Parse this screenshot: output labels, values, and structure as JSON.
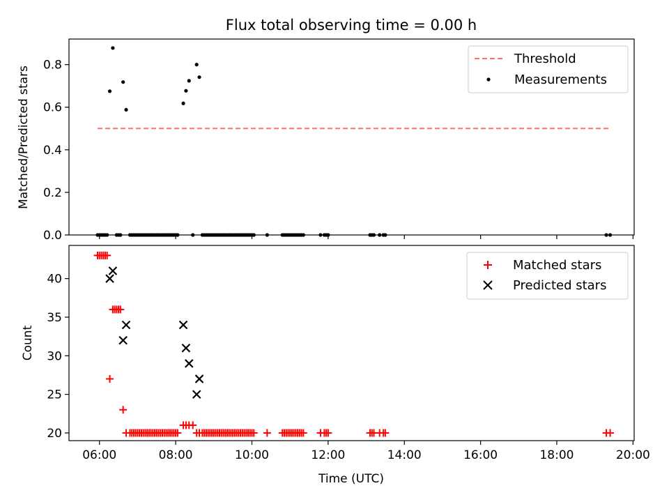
{
  "chart_data": [
    {
      "type": "scatter",
      "title": "Flux total observing time = 0.00 h",
      "xlabel": "",
      "ylabel": "Matched/Predicted stars",
      "xlim": [
        5.2,
        20.03
      ],
      "ylim": [
        0,
        0.92
      ],
      "x_ticks": [
        6,
        8,
        10,
        12,
        14,
        16,
        18,
        20
      ],
      "y_ticks": [
        0.0,
        0.2,
        0.4,
        0.6,
        0.8
      ],
      "y_tick_labels": [
        "0.0",
        "0.2",
        "0.4",
        "0.6",
        "0.8"
      ],
      "legend": {
        "position": "top-right",
        "entries": [
          "Threshold",
          "Measurements"
        ]
      },
      "colors": {
        "threshold": "#ff7070",
        "measurements": "#000000"
      },
      "threshold": {
        "name": "Threshold",
        "x": [
          5.95,
          19.42
        ],
        "y": 0.5
      },
      "measurements": {
        "name": "Measurements",
        "x": [
          5.95,
          6.0,
          6.05,
          6.1,
          6.15,
          6.2,
          6.27,
          6.35,
          6.45,
          6.5,
          6.55,
          6.62,
          6.7,
          6.8,
          6.85,
          6.9,
          6.95,
          7.0,
          7.05,
          7.1,
          7.15,
          7.2,
          7.25,
          7.3,
          7.35,
          7.4,
          7.45,
          7.5,
          7.55,
          7.6,
          7.65,
          7.7,
          7.75,
          7.8,
          7.85,
          7.9,
          7.95,
          8.0,
          8.05,
          8.2,
          8.27,
          8.35,
          8.45,
          8.55,
          8.62,
          8.7,
          8.75,
          8.8,
          8.85,
          8.9,
          8.95,
          9.0,
          9.05,
          9.1,
          9.15,
          9.2,
          9.25,
          9.3,
          9.35,
          9.4,
          9.45,
          9.5,
          9.55,
          9.6,
          9.65,
          9.7,
          9.75,
          9.8,
          9.85,
          9.9,
          9.95,
          10.0,
          10.05,
          10.4,
          10.8,
          10.85,
          10.9,
          10.95,
          11.0,
          11.05,
          11.1,
          11.15,
          11.2,
          11.25,
          11.3,
          11.35,
          11.8,
          11.9,
          11.95,
          12.0,
          13.1,
          13.15,
          13.2,
          13.35,
          13.45,
          13.5,
          19.3,
          19.4
        ],
        "y": [
          0,
          0,
          0,
          0,
          0,
          0,
          0.675,
          0.878,
          0,
          0,
          0,
          0.718,
          0.588,
          0,
          0,
          0,
          0,
          0,
          0,
          0,
          0,
          0,
          0,
          0,
          0,
          0,
          0,
          0,
          0,
          0,
          0,
          0,
          0,
          0,
          0,
          0,
          0,
          0,
          0,
          0.618,
          0.677,
          0.724,
          0,
          0.8,
          0.741,
          0,
          0,
          0,
          0,
          0,
          0,
          0,
          0,
          0,
          0,
          0,
          0,
          0,
          0,
          0,
          0,
          0,
          0,
          0,
          0,
          0,
          0,
          0,
          0,
          0,
          0,
          0,
          0,
          0,
          0,
          0,
          0,
          0,
          0,
          0,
          0,
          0,
          0,
          0,
          0,
          0,
          0,
          0,
          0,
          0,
          0,
          0,
          0,
          0,
          0,
          0,
          0,
          0
        ]
      }
    },
    {
      "type": "scatter",
      "title": "",
      "xlabel": "Time (UTC)",
      "ylabel": "Count",
      "xlim": [
        5.2,
        20.03
      ],
      "ylim": [
        19.0,
        44.3
      ],
      "x_ticks": [
        6,
        8,
        10,
        12,
        14,
        16,
        18,
        20
      ],
      "x_tick_labels": [
        "06:00",
        "08:00",
        "10:00",
        "12:00",
        "14:00",
        "16:00",
        "18:00",
        "20:00"
      ],
      "y_ticks": [
        20,
        25,
        30,
        35,
        40
      ],
      "y_tick_labels": [
        "20",
        "25",
        "30",
        "35",
        "40"
      ],
      "legend": {
        "position": "top-right",
        "entries": [
          "Matched stars",
          "Predicted stars"
        ]
      },
      "colors": {
        "matched": "#ff0000",
        "predicted": "#000000"
      },
      "series": [
        {
          "name": "Matched stars",
          "marker": "+",
          "x": [
            5.95,
            6.0,
            6.05,
            6.1,
            6.15,
            6.2,
            6.27,
            6.35,
            6.4,
            6.45,
            6.5,
            6.55,
            6.62,
            6.7,
            6.8,
            6.85,
            6.9,
            6.95,
            7.0,
            7.05,
            7.1,
            7.15,
            7.2,
            7.25,
            7.3,
            7.35,
            7.4,
            7.45,
            7.5,
            7.55,
            7.6,
            7.65,
            7.7,
            7.75,
            7.8,
            7.85,
            7.9,
            7.95,
            8.0,
            8.05,
            8.2,
            8.27,
            8.35,
            8.45,
            8.55,
            8.62,
            8.7,
            8.75,
            8.8,
            8.85,
            8.9,
            8.95,
            9.0,
            9.05,
            9.1,
            9.15,
            9.2,
            9.25,
            9.3,
            9.35,
            9.4,
            9.45,
            9.5,
            9.55,
            9.6,
            9.65,
            9.7,
            9.75,
            9.8,
            9.85,
            9.9,
            9.95,
            10.0,
            10.05,
            10.4,
            10.8,
            10.85,
            10.9,
            10.95,
            11.0,
            11.05,
            11.1,
            11.15,
            11.2,
            11.25,
            11.3,
            11.35,
            11.8,
            11.9,
            11.95,
            12.0,
            13.1,
            13.15,
            13.2,
            13.35,
            13.45,
            13.5,
            19.3,
            19.4
          ],
          "y": [
            43,
            43,
            43,
            43,
            43,
            43,
            27,
            36,
            36,
            36,
            36,
            36,
            23,
            20,
            20,
            20,
            20,
            20,
            20,
            20,
            20,
            20,
            20,
            20,
            20,
            20,
            20,
            20,
            20,
            20,
            20,
            20,
            20,
            20,
            20,
            20,
            20,
            20,
            20,
            20,
            21,
            21,
            21,
            21,
            20,
            20,
            20,
            20,
            20,
            20,
            20,
            20,
            20,
            20,
            20,
            20,
            20,
            20,
            20,
            20,
            20,
            20,
            20,
            20,
            20,
            20,
            20,
            20,
            20,
            20,
            20,
            20,
            20,
            20,
            20,
            20,
            20,
            20,
            20,
            20,
            20,
            20,
            20,
            20,
            20,
            20,
            20,
            20,
            20,
            20,
            20,
            20,
            20,
            20,
            20,
            20,
            20,
            20,
            20
          ]
        },
        {
          "name": "Predicted stars",
          "marker": "x",
          "x": [
            6.27,
            6.35,
            6.62,
            6.7,
            8.2,
            8.27,
            8.35,
            8.55,
            8.62
          ],
          "y": [
            40,
            41,
            32,
            34,
            34,
            31,
            29,
            25,
            27
          ]
        }
      ]
    }
  ]
}
